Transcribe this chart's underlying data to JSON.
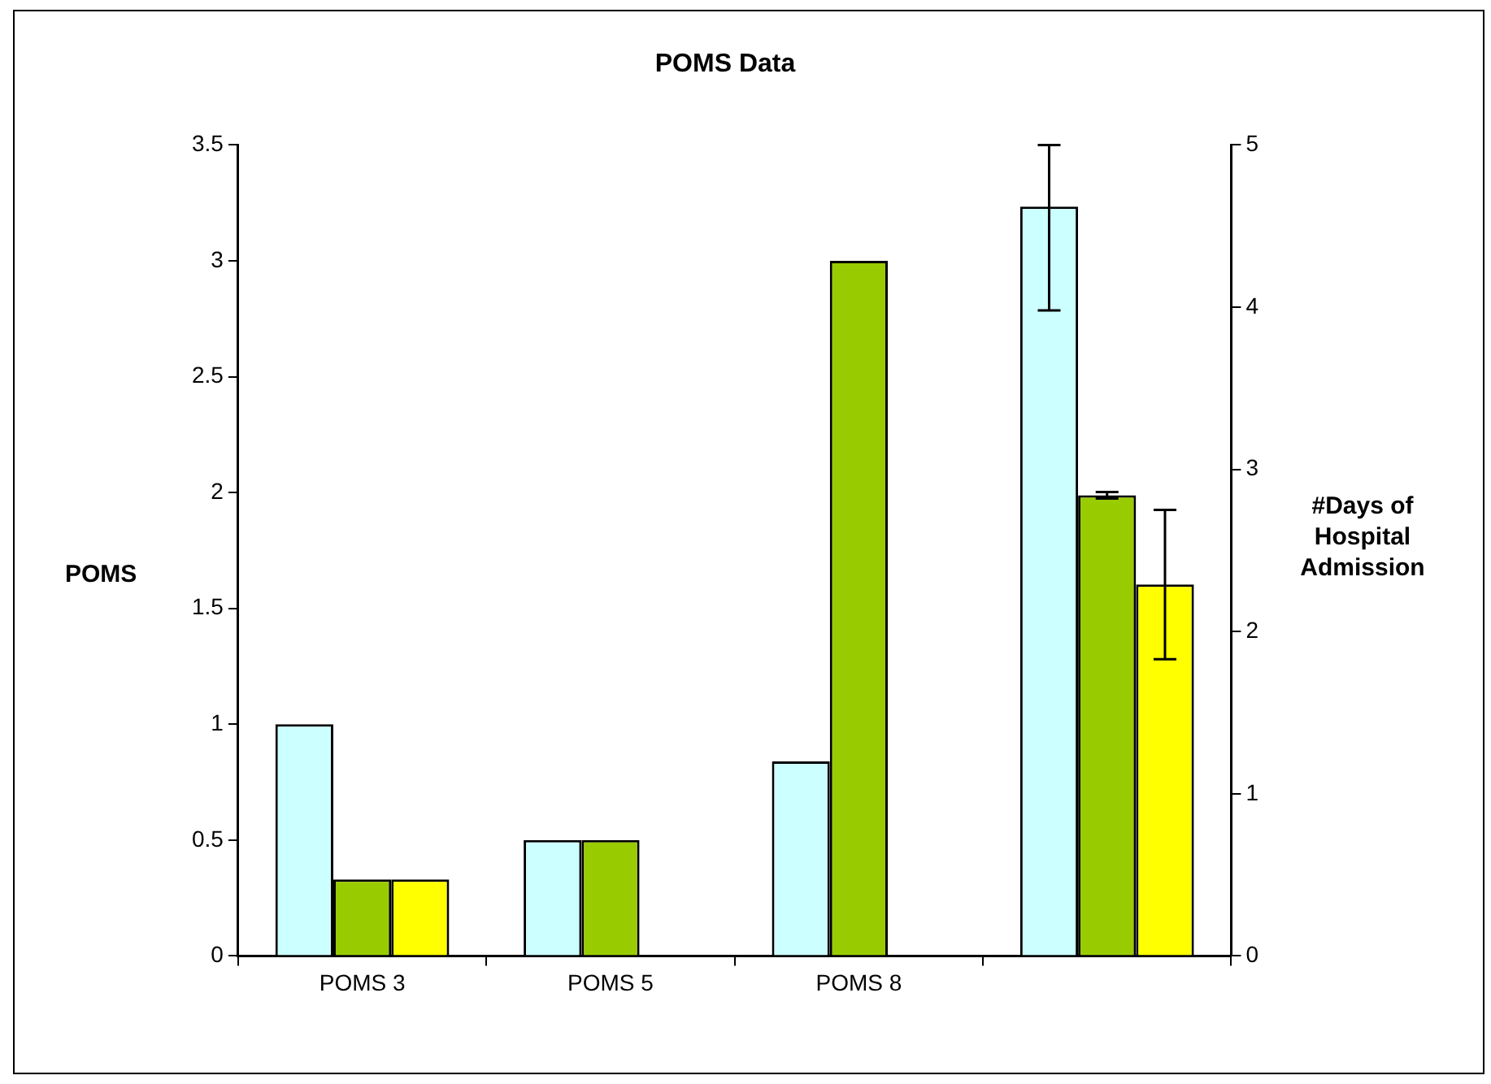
{
  "chart_data": {
    "type": "bar",
    "title": "POMS Data",
    "ylabel": "POMS",
    "y2label": "#Days of Hospital Admission",
    "categories": [
      "POMS 3",
      "POMS 5",
      "POMS 8",
      null
    ],
    "series": [
      {
        "color": "#ccffff",
        "values": [
          1,
          0.5,
          0.84,
          null
        ]
      },
      {
        "color": "#99cc00",
        "values": [
          0.33,
          0.5,
          3.0,
          null
        ]
      },
      {
        "color": "#ffff00",
        "values": [
          0.33,
          null,
          null,
          null
        ]
      },
      {
        "color": "#ccffff",
        "axis": "y2",
        "values": [
          null,
          null,
          null,
          4.62
        ],
        "errors": [
          null,
          null,
          null,
          [
            3.98,
            5.0
          ]
        ]
      },
      {
        "color": "#99cc00",
        "axis": "y2",
        "values": [
          null,
          null,
          null,
          2.84
        ],
        "errors": [
          null,
          null,
          null,
          0.02
        ]
      },
      {
        "color": "#ffff00",
        "axis": "y2",
        "values": [
          null,
          null,
          null,
          2.29
        ],
        "errors": [
          null,
          null,
          null,
          0.46
        ]
      }
    ],
    "ylim": [
      0,
      3.5
    ],
    "yticks": [
      0,
      0.5,
      1,
      1.5,
      2,
      2.5,
      3,
      3.5
    ],
    "y2lim": [
      0,
      5
    ],
    "y2ticks": [
      0,
      1,
      2,
      3,
      4,
      5
    ],
    "grid": false,
    "legend": false
  }
}
